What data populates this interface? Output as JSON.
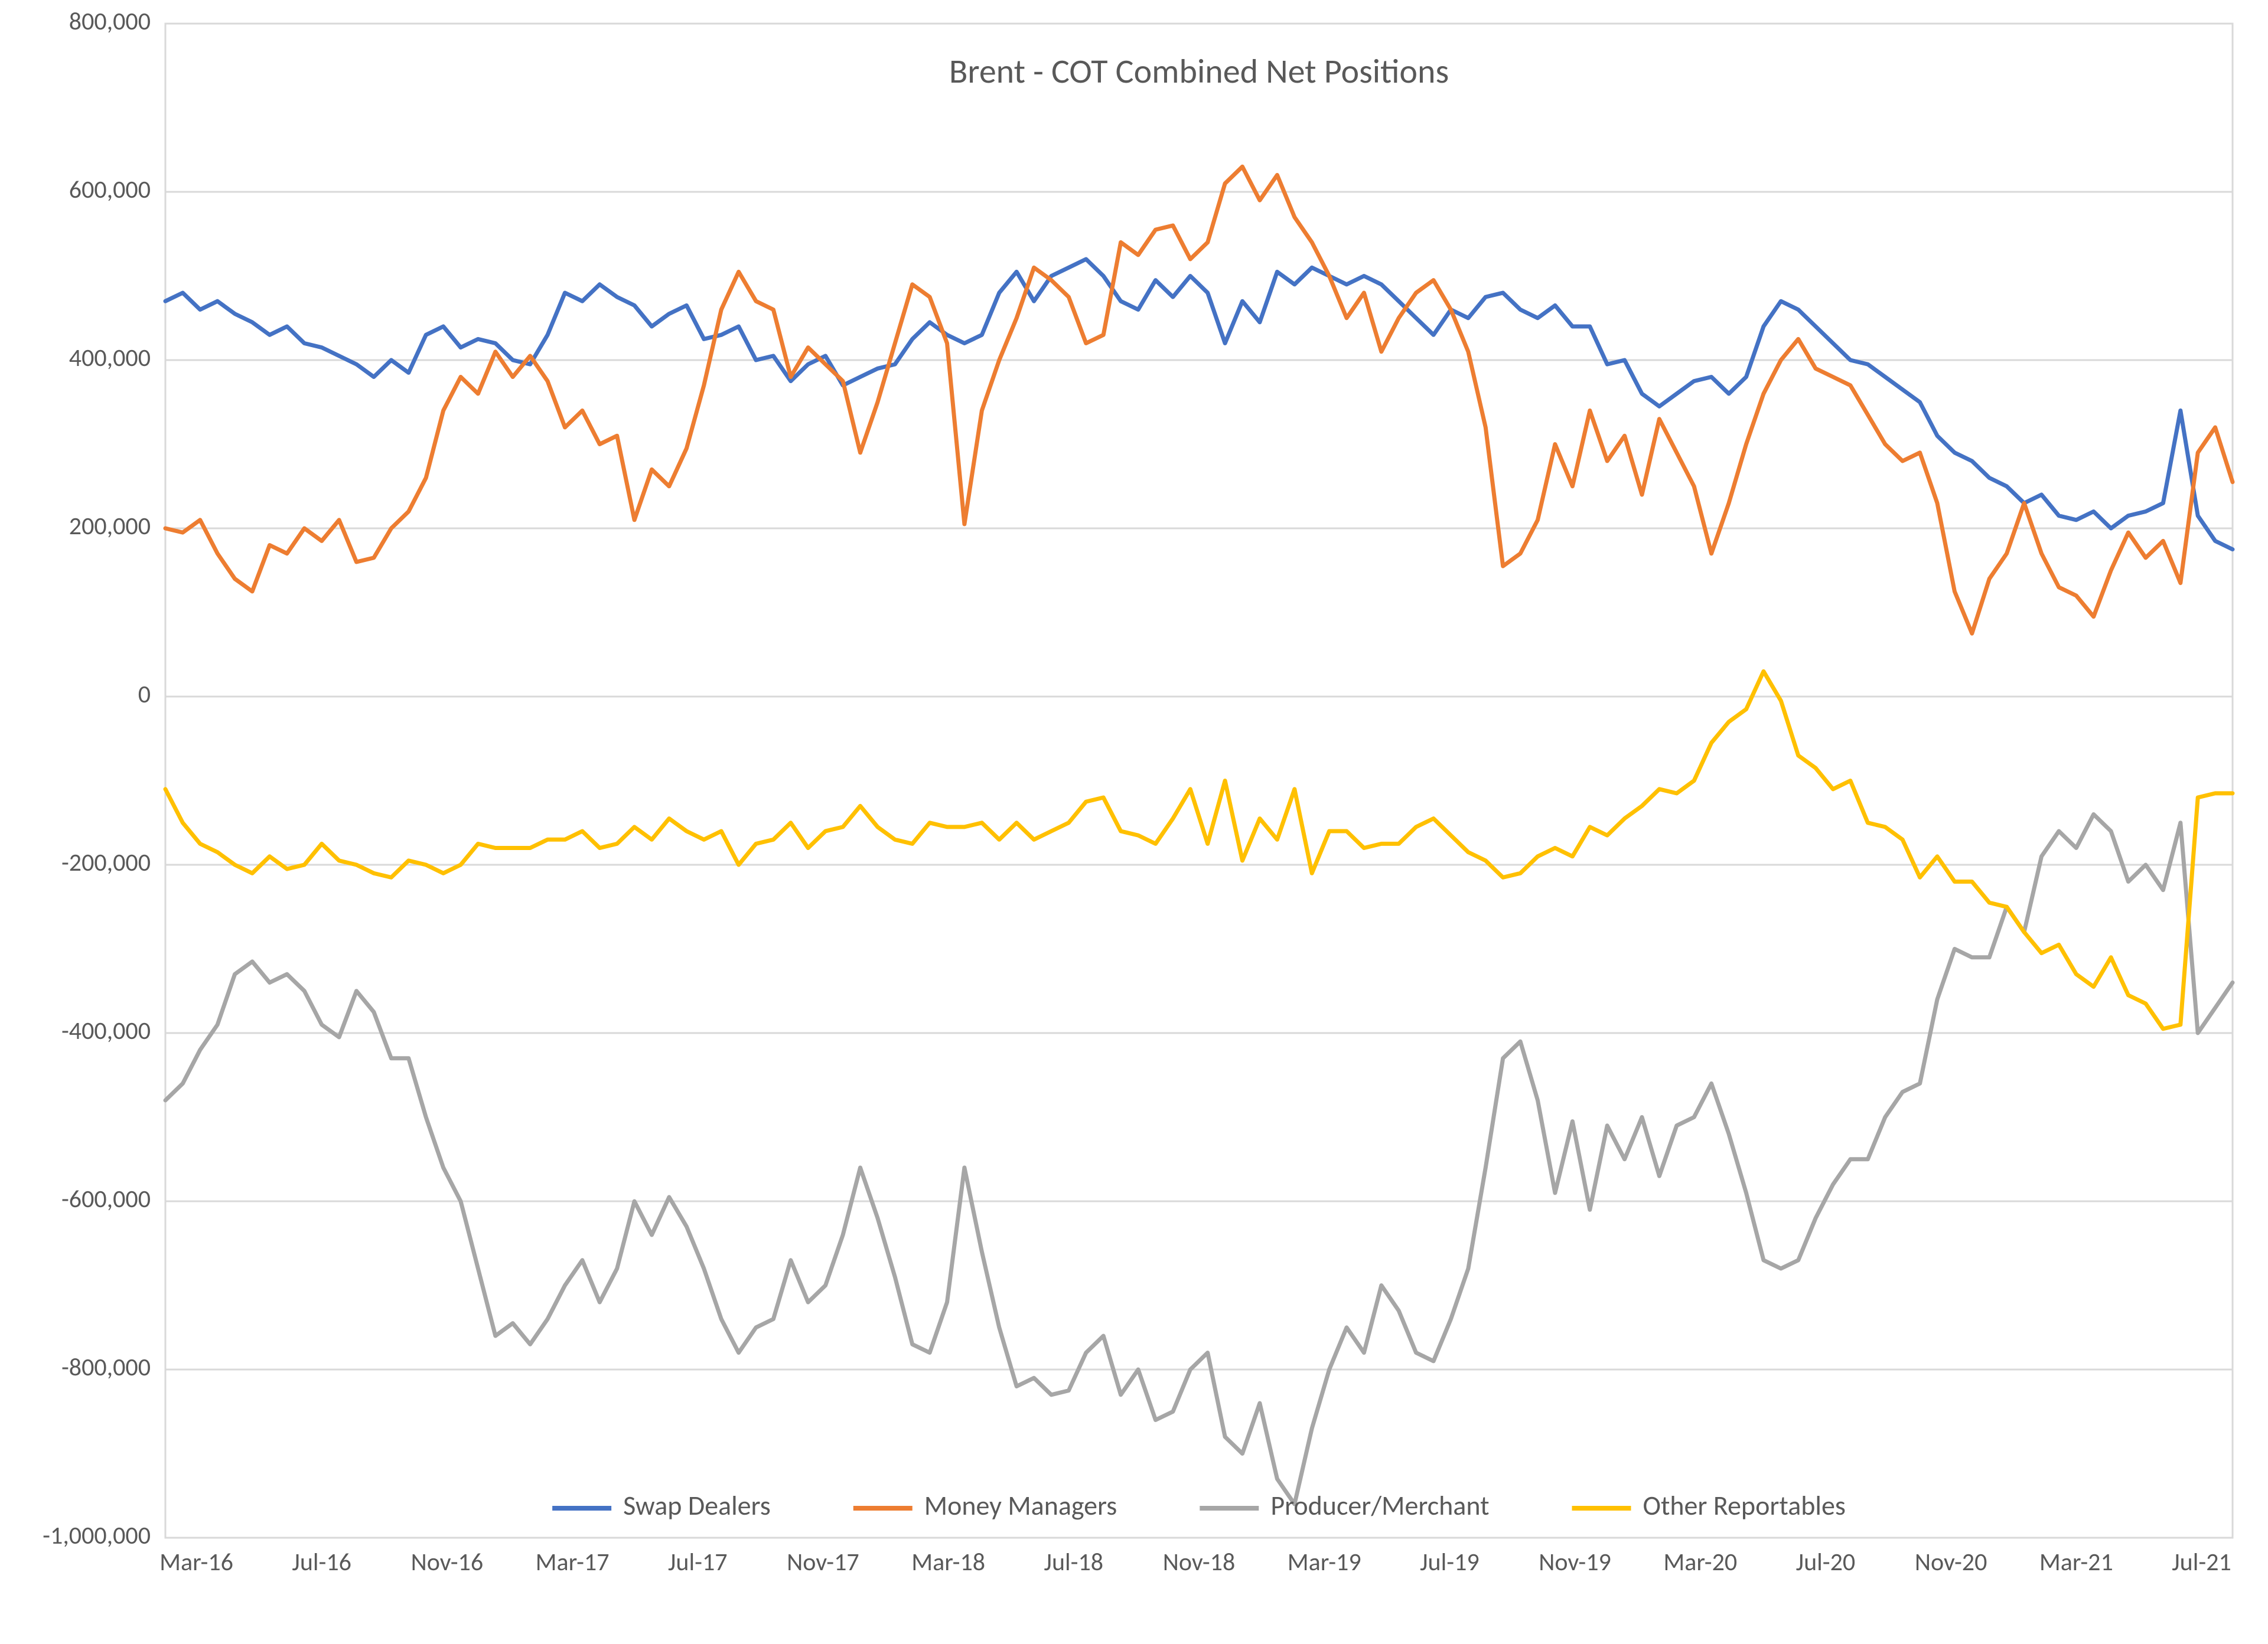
{
  "chart": {
    "type": "line",
    "title": "Brent - COT Combined Net Positions",
    "title_fontsize": 58,
    "title_color": "#595959",
    "title_weight": "400",
    "background_color": "#ffffff",
    "plot_border_color": "#d9d9d9",
    "plot_border_width": 3,
    "gridline_color": "#d9d9d9",
    "gridline_width": 3,
    "axis_label_color": "#595959",
    "axis_label_fontsize": 42,
    "ylim": [
      -1000000,
      800000
    ],
    "ytick_step": 200000,
    "line_width": 7,
    "x_categories": [
      "Mar-16",
      "Jul-16",
      "Nov-16",
      "Mar-17",
      "Jul-17",
      "Nov-17",
      "Mar-18",
      "Jul-18",
      "Nov-18",
      "Mar-19",
      "Jul-19",
      "Nov-19",
      "Mar-20",
      "Jul-20",
      "Nov-20",
      "Mar-21",
      "Jul-21"
    ],
    "legend": {
      "fontsize": 46,
      "color": "#595959",
      "position": "bottom",
      "swatch_width": 100,
      "swatch_stroke": 8
    },
    "series": [
      {
        "name": "Swap Dealers",
        "color": "#4472c4",
        "values": [
          470000,
          480000,
          460000,
          470000,
          455000,
          445000,
          430000,
          440000,
          420000,
          415000,
          405000,
          395000,
          380000,
          400000,
          385000,
          430000,
          440000,
          415000,
          425000,
          420000,
          400000,
          395000,
          430000,
          480000,
          470000,
          490000,
          475000,
          465000,
          440000,
          455000,
          465000,
          425000,
          430000,
          440000,
          400000,
          405000,
          375000,
          395000,
          405000,
          370000,
          380000,
          390000,
          395000,
          425000,
          445000,
          430000,
          420000,
          430000,
          480000,
          505000,
          470000,
          500000,
          510000,
          520000,
          500000,
          470000,
          460000,
          495000,
          475000,
          500000,
          480000,
          420000,
          470000,
          445000,
          505000,
          490000,
          510000,
          500000,
          490000,
          500000,
          490000,
          470000,
          450000,
          430000,
          460000,
          450000,
          475000,
          480000,
          460000,
          450000,
          465000,
          440000,
          440000,
          395000,
          400000,
          360000,
          345000,
          360000,
          375000,
          380000,
          360000,
          380000,
          440000,
          470000,
          460000,
          440000,
          420000,
          400000,
          395000,
          380000,
          365000,
          350000,
          310000,
          290000,
          280000,
          260000,
          250000,
          230000,
          240000,
          215000,
          210000,
          220000,
          200000,
          215000,
          220000,
          230000,
          340000,
          215000,
          185000,
          175000
        ]
      },
      {
        "name": "Money Managers",
        "color": "#ed7d31",
        "values": [
          200000,
          195000,
          210000,
          170000,
          140000,
          125000,
          180000,
          170000,
          200000,
          185000,
          210000,
          160000,
          165000,
          200000,
          220000,
          260000,
          340000,
          380000,
          360000,
          410000,
          380000,
          405000,
          375000,
          320000,
          340000,
          300000,
          310000,
          210000,
          270000,
          250000,
          295000,
          370000,
          460000,
          505000,
          470000,
          460000,
          380000,
          415000,
          395000,
          375000,
          290000,
          350000,
          420000,
          490000,
          475000,
          420000,
          205000,
          340000,
          400000,
          450000,
          510000,
          495000,
          475000,
          420000,
          430000,
          540000,
          525000,
          555000,
          560000,
          520000,
          540000,
          610000,
          630000,
          590000,
          620000,
          570000,
          540000,
          500000,
          450000,
          480000,
          410000,
          450000,
          480000,
          495000,
          460000,
          410000,
          320000,
          155000,
          170000,
          210000,
          300000,
          250000,
          340000,
          280000,
          310000,
          240000,
          330000,
          290000,
          250000,
          170000,
          230000,
          300000,
          360000,
          400000,
          425000,
          390000,
          380000,
          370000,
          335000,
          300000,
          280000,
          290000,
          230000,
          125000,
          75000,
          140000,
          170000,
          230000,
          170000,
          130000,
          120000,
          95000,
          150000,
          195000,
          165000,
          185000,
          135000,
          290000,
          320000,
          255000
        ]
      },
      {
        "name": "Producer/Merchant",
        "color": "#a6a6a6",
        "values": [
          -480000,
          -460000,
          -420000,
          -390000,
          -330000,
          -315000,
          -340000,
          -330000,
          -350000,
          -390000,
          -405000,
          -350000,
          -375000,
          -430000,
          -430000,
          -500000,
          -560000,
          -600000,
          -680000,
          -760000,
          -745000,
          -770000,
          -740000,
          -700000,
          -670000,
          -720000,
          -680000,
          -600000,
          -640000,
          -595000,
          -630000,
          -680000,
          -740000,
          -780000,
          -750000,
          -740000,
          -670000,
          -720000,
          -700000,
          -640000,
          -560000,
          -620000,
          -690000,
          -770000,
          -780000,
          -720000,
          -560000,
          -660000,
          -750000,
          -820000,
          -810000,
          -830000,
          -825000,
          -780000,
          -760000,
          -830000,
          -800000,
          -860000,
          -850000,
          -800000,
          -780000,
          -880000,
          -900000,
          -840000,
          -930000,
          -960000,
          -870000,
          -800000,
          -750000,
          -780000,
          -700000,
          -730000,
          -780000,
          -790000,
          -740000,
          -680000,
          -560000,
          -430000,
          -410000,
          -480000,
          -590000,
          -505000,
          -610000,
          -510000,
          -550000,
          -500000,
          -570000,
          -510000,
          -500000,
          -460000,
          -520000,
          -590000,
          -670000,
          -680000,
          -670000,
          -620000,
          -580000,
          -550000,
          -550000,
          -500000,
          -470000,
          -460000,
          -360000,
          -300000,
          -310000,
          -310000,
          -250000,
          -280000,
          -190000,
          -160000,
          -180000,
          -140000,
          -160000,
          -220000,
          -200000,
          -230000,
          -150000,
          -400000,
          -370000,
          -340000
        ]
      },
      {
        "name": "Other Reportables",
        "color": "#ffc000",
        "values": [
          -110000,
          -150000,
          -175000,
          -185000,
          -200000,
          -210000,
          -190000,
          -205000,
          -200000,
          -175000,
          -195000,
          -200000,
          -210000,
          -215000,
          -195000,
          -200000,
          -210000,
          -200000,
          -175000,
          -180000,
          -180000,
          -180000,
          -170000,
          -170000,
          -160000,
          -180000,
          -175000,
          -155000,
          -170000,
          -145000,
          -160000,
          -170000,
          -160000,
          -200000,
          -175000,
          -170000,
          -150000,
          -180000,
          -160000,
          -155000,
          -130000,
          -155000,
          -170000,
          -175000,
          -150000,
          -155000,
          -155000,
          -150000,
          -170000,
          -150000,
          -170000,
          -160000,
          -150000,
          -125000,
          -120000,
          -160000,
          -165000,
          -175000,
          -145000,
          -110000,
          -175000,
          -100000,
          -195000,
          -145000,
          -170000,
          -110000,
          -210000,
          -160000,
          -160000,
          -180000,
          -175000,
          -175000,
          -155000,
          -145000,
          -165000,
          -185000,
          -195000,
          -215000,
          -210000,
          -190000,
          -180000,
          -190000,
          -155000,
          -165000,
          -145000,
          -130000,
          -110000,
          -115000,
          -100000,
          -55000,
          -30000,
          -15000,
          30000,
          -5000,
          -70000,
          -85000,
          -110000,
          -100000,
          -150000,
          -155000,
          -170000,
          -215000,
          -190000,
          -220000,
          -220000,
          -245000,
          -250000,
          -280000,
          -305000,
          -295000,
          -330000,
          -345000,
          -310000,
          -355000,
          -365000,
          -395000,
          -390000,
          -120000,
          -115000,
          -115000
        ]
      }
    ]
  }
}
